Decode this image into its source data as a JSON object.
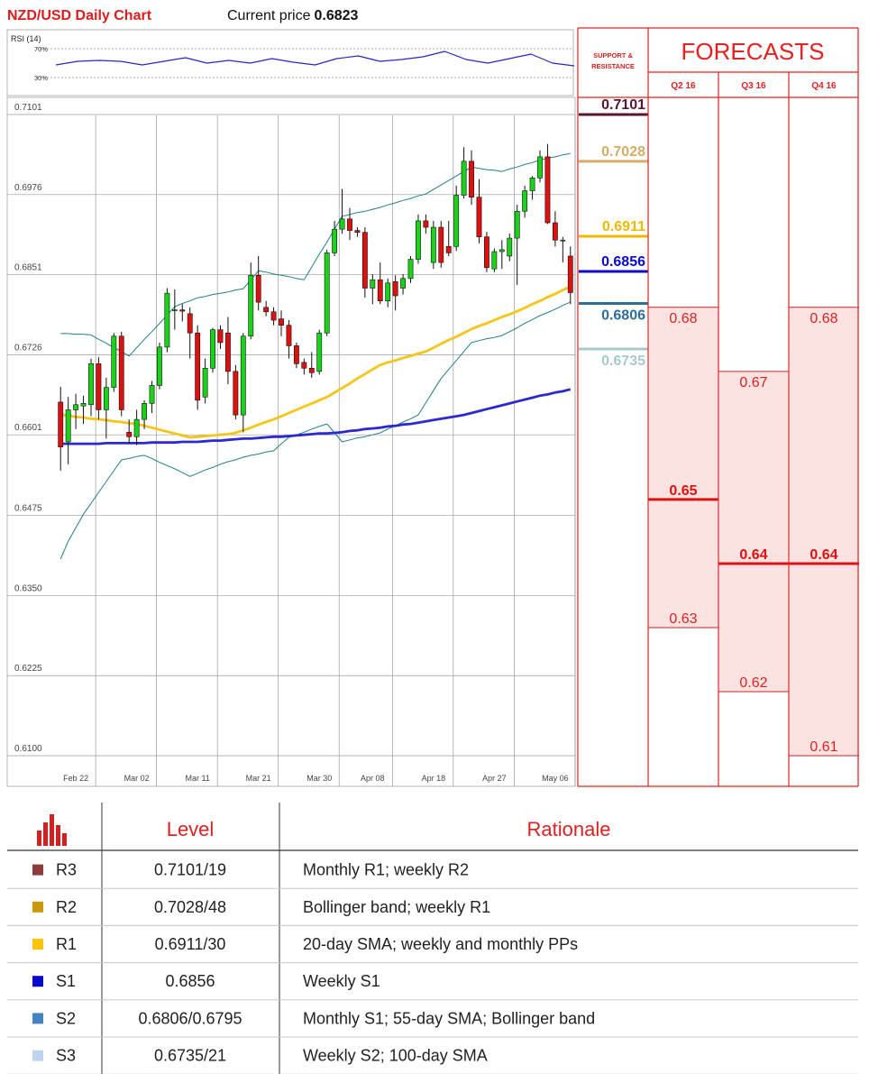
{
  "header": {
    "title": "NZD/USD Daily Chart",
    "price_label": "Current price",
    "price": 0.6823
  },
  "chart_data": [
    {
      "type": "line",
      "title": "RSI (14)",
      "color": "#2626c8",
      "values": [
        47.5,
        52.5,
        53.8,
        52.5,
        47.5,
        52.5,
        57.5,
        50,
        53.8,
        50,
        56.3,
        51.3,
        47.5,
        56.3,
        60,
        52.5,
        55,
        58.8,
        66.3,
        55,
        50,
        56.3,
        62.5,
        50,
        46.3
      ],
      "ylim": [
        10,
        85
      ],
      "yticks": [
        {
          "value": 30,
          "label": "30%"
        },
        {
          "value": 70,
          "label": "70%"
        }
      ]
    },
    {
      "type": "candlestick",
      "categories": [
        null,
        null,
        "Feb 22",
        null,
        null,
        null,
        null,
        null,
        null,
        null,
        "Mar 02",
        null,
        null,
        null,
        null,
        null,
        null,
        null,
        "Mar 11",
        null,
        null,
        null,
        null,
        null,
        null,
        null,
        "Mar 21",
        null,
        null,
        null,
        null,
        null,
        null,
        null,
        "Mar 30",
        null,
        null,
        null,
        null,
        null,
        null,
        "Apr 08",
        null,
        null,
        null,
        null,
        null,
        null,
        null,
        "Apr 18",
        null,
        null,
        null,
        null,
        null,
        null,
        null,
        "Apr 27",
        null,
        null,
        null,
        null,
        null,
        null,
        null,
        "May 06",
        null,
        null
      ],
      "open": [
        0.6652,
        0.659,
        0.664,
        0.6646,
        0.6648,
        0.6712,
        0.664,
        0.6675,
        0.6755,
        0.6605,
        0.6598,
        0.6625,
        0.665,
        0.6678,
        0.6738,
        0.6795,
        0.6796,
        0.679,
        0.676,
        0.666,
        0.6705,
        0.6765,
        0.676,
        0.67,
        0.6632,
        0.6755,
        0.685,
        0.68,
        0.6793,
        0.6782,
        0.6772,
        0.674,
        0.6714,
        0.6705,
        0.67,
        0.676,
        0.6885,
        0.6922,
        0.6938,
        0.692,
        0.6917,
        0.683,
        0.6843,
        0.681,
        0.684,
        0.683,
        0.6845,
        0.6875,
        0.6935,
        0.687,
        0.6925,
        0.6895,
        0.6895,
        0.6975,
        0.7028,
        0.6972,
        0.691,
        0.686,
        0.6887,
        0.688,
        0.6908,
        0.695,
        0.6982,
        0.7002,
        0.7035,
        0.6932,
        0.6905,
        0.688
      ],
      "high": [
        0.6676,
        0.666,
        0.6665,
        0.6662,
        0.672,
        0.6722,
        0.669,
        0.676,
        0.6762,
        0.6625,
        0.664,
        0.6655,
        0.6685,
        0.6745,
        0.683,
        0.6828,
        0.6805,
        0.68,
        0.6772,
        0.672,
        0.6768,
        0.6772,
        0.6785,
        0.671,
        0.676,
        0.687,
        0.688,
        0.681,
        0.68,
        0.6795,
        0.678,
        0.6745,
        0.672,
        0.673,
        0.6765,
        0.689,
        0.6935,
        0.6985,
        0.6955,
        0.6925,
        0.6925,
        0.6852,
        0.687,
        0.6845,
        0.685,
        0.6852,
        0.688,
        0.6945,
        0.6945,
        0.6935,
        0.6935,
        0.6935,
        0.699,
        0.705,
        0.7045,
        0.7,
        0.6918,
        0.6892,
        0.6905,
        0.6915,
        0.696,
        0.699,
        0.7005,
        0.7045,
        0.7055,
        0.695,
        0.691,
        0.6895
      ],
      "low": [
        0.6545,
        0.6555,
        0.661,
        0.6618,
        0.663,
        0.6625,
        0.6595,
        0.6668,
        0.663,
        0.6588,
        0.6585,
        0.661,
        0.6635,
        0.6672,
        0.673,
        0.6765,
        0.6778,
        0.672,
        0.664,
        0.665,
        0.6698,
        0.6735,
        0.668,
        0.6625,
        0.6605,
        0.675,
        0.6795,
        0.6786,
        0.6772,
        0.6755,
        0.672,
        0.6705,
        0.6695,
        0.669,
        0.6695,
        0.6755,
        0.688,
        0.6915,
        0.6905,
        0.691,
        0.6815,
        0.6805,
        0.6805,
        0.68,
        0.6795,
        0.682,
        0.6838,
        0.6868,
        0.6915,
        0.686,
        0.6862,
        0.688,
        0.6888,
        0.697,
        0.696,
        0.69,
        0.6855,
        0.6855,
        0.686,
        0.6872,
        0.6835,
        0.694,
        0.6968,
        0.6995,
        0.693,
        0.6895,
        0.687,
        0.6805
      ],
      "close": [
        0.6582,
        0.664,
        0.6648,
        0.665,
        0.6712,
        0.664,
        0.6675,
        0.6755,
        0.664,
        0.6598,
        0.6625,
        0.665,
        0.6678,
        0.6738,
        0.6822,
        0.6796,
        0.6794,
        0.676,
        0.6655,
        0.6705,
        0.6765,
        0.6745,
        0.67,
        0.6632,
        0.6755,
        0.685,
        0.6808,
        0.6793,
        0.678,
        0.6772,
        0.674,
        0.6712,
        0.6705,
        0.6698,
        0.676,
        0.6885,
        0.6922,
        0.6938,
        0.692,
        0.6917,
        0.683,
        0.6843,
        0.681,
        0.6838,
        0.6818,
        0.6845,
        0.6875,
        0.6935,
        0.6925,
        0.6925,
        0.687,
        0.6885,
        0.6975,
        0.7028,
        0.6972,
        0.691,
        0.6862,
        0.6887,
        0.689,
        0.6908,
        0.695,
        0.6982,
        0.7002,
        0.7035,
        0.6932,
        0.6905,
        0.6905,
        0.6823
      ],
      "up_color": "#19d219",
      "down_color": "#e01010",
      "overlays": [
        {
          "color": "#1f7f86",
          "bold": false,
          "values": [
            0.6759,
            0.6759,
            0.6758,
            0.6758,
            0.6757,
            0.675,
            0.6744,
            0.6737,
            0.6731,
            0.6724,
            0.6737,
            0.675,
            0.6762,
            0.6775,
            0.6788,
            0.6801,
            0.6806,
            0.681,
            0.6815,
            0.6817,
            0.682,
            0.6822,
            0.6824,
            0.6827,
            0.6829,
            0.6843,
            0.6857,
            0.6855,
            0.6852,
            0.685,
            0.6848,
            0.6845,
            0.6843,
            0.6863,
            0.6883,
            0.6902,
            0.6922,
            0.6942,
            0.6945,
            0.6948,
            0.695,
            0.6953,
            0.6956,
            0.696,
            0.6963,
            0.6967,
            0.697,
            0.6974,
            0.6977,
            0.6984,
            0.6991,
            0.6998,
            0.7005,
            0.7012,
            0.7019,
            0.7017,
            0.7015,
            0.7014,
            0.7012,
            0.7016,
            0.7019,
            0.7023,
            0.7026,
            0.703,
            0.7033,
            0.7035,
            0.7038,
            0.704
          ]
        },
        {
          "color": "#1f7f86",
          "bold": false,
          "values": [
            0.6407,
            0.6435,
            0.6456,
            0.6477,
            0.6494,
            0.6511,
            0.6528,
            0.6545,
            0.6562,
            0.6564,
            0.6567,
            0.6569,
            0.6564,
            0.6558,
            0.6553,
            0.6548,
            0.6542,
            0.6536,
            0.6541,
            0.6546,
            0.655,
            0.6555,
            0.6559,
            0.6562,
            0.6566,
            0.6569,
            0.6571,
            0.6574,
            0.6576,
            0.6587,
            0.6597,
            0.6601,
            0.6605,
            0.661,
            0.6614,
            0.6618,
            0.6604,
            0.659,
            0.6593,
            0.6596,
            0.6598,
            0.6601,
            0.6604,
            0.661,
            0.6615,
            0.6621,
            0.6626,
            0.6632,
            0.6651,
            0.667,
            0.6689,
            0.6703,
            0.6717,
            0.6731,
            0.6745,
            0.6748,
            0.6751,
            0.6753,
            0.6756,
            0.6762,
            0.6768,
            0.6775,
            0.6781,
            0.6787,
            0.6792,
            0.6797,
            0.6803,
            0.6808
          ]
        },
        {
          "color": "#f5c518",
          "bold": true,
          "values": [
            0.6632,
            0.6631,
            0.6629,
            0.6628,
            0.6626,
            0.6625,
            0.6624,
            0.6622,
            0.6621,
            0.6619,
            0.6618,
            0.6615,
            0.6612,
            0.6609,
            0.6606,
            0.6603,
            0.66,
            0.6597,
            0.6598,
            0.6599,
            0.66,
            0.6601,
            0.6602,
            0.6604,
            0.6608,
            0.6612,
            0.6617,
            0.6621,
            0.6625,
            0.663,
            0.6635,
            0.664,
            0.6645,
            0.665,
            0.6655,
            0.666,
            0.6667,
            0.6674,
            0.6681,
            0.6689,
            0.6696,
            0.6703,
            0.671,
            0.6714,
            0.6717,
            0.6721,
            0.6724,
            0.6728,
            0.6731,
            0.6737,
            0.6743,
            0.6749,
            0.6754,
            0.676,
            0.6766,
            0.6771,
            0.6775,
            0.678,
            0.6785,
            0.6789,
            0.6794,
            0.6799,
            0.6805,
            0.681,
            0.6816,
            0.6821,
            0.6827,
            0.6832
          ]
        },
        {
          "color": "#2a2ad0",
          "bold": true,
          "values": [
            0.6587,
            0.6587,
            0.6587,
            0.6587,
            0.6587,
            0.6587,
            0.6588,
            0.6588,
            0.6588,
            0.6588,
            0.6588,
            0.6588,
            0.6589,
            0.6589,
            0.6589,
            0.6589,
            0.659,
            0.659,
            0.659,
            0.6591,
            0.6592,
            0.6592,
            0.6593,
            0.6594,
            0.6595,
            0.6595,
            0.6596,
            0.6597,
            0.6598,
            0.6598,
            0.6599,
            0.66,
            0.6601,
            0.6602,
            0.6603,
            0.6603,
            0.6604,
            0.6605,
            0.6607,
            0.6608,
            0.661,
            0.6611,
            0.6612,
            0.6614,
            0.6615,
            0.6617,
            0.6618,
            0.662,
            0.6622,
            0.6624,
            0.6626,
            0.6628,
            0.663,
            0.6632,
            0.6635,
            0.6638,
            0.6641,
            0.6644,
            0.6647,
            0.665,
            0.6653,
            0.6656,
            0.6659,
            0.6662,
            0.6664,
            0.6667,
            0.6669,
            0.6672
          ]
        }
      ],
      "ylim": [
        0.6055,
        0.7101
      ],
      "yticks": [
        {
          "value": 0.61,
          "label": "0.6100"
        },
        0.6225,
        {
          "value": 0.635,
          "label": "0.6350"
        },
        0.6475,
        0.6601,
        0.6726,
        0.6851,
        0.6976,
        0.7101
      ],
      "grid": true
    }
  ],
  "levels": {
    "header": [
      "SUPPORT &",
      "RESISTANCE"
    ],
    "items": [
      {
        "value": 0.7101,
        "color": "#5a1530"
      },
      {
        "value": 0.7028,
        "color": "#d4ac66"
      },
      {
        "value": 0.6911,
        "color": "#f2b800"
      },
      {
        "value": 0.6856,
        "color": "#0a0acc"
      },
      {
        "value": 0.6806,
        "color": "#2e6e9c"
      },
      {
        "value": 0.6735,
        "color": "#a7c9cf"
      }
    ]
  },
  "forecasts": {
    "title": "FORECASTS",
    "columns": [
      {
        "name": "Q2 16",
        "high": 0.68,
        "mid": 0.65,
        "low": 0.63
      },
      {
        "name": "Q3 16",
        "high": 0.67,
        "mid": 0.64,
        "low": 0.62
      },
      {
        "name": "Q4 16",
        "high": 0.68,
        "mid": 0.64,
        "low": 0.61
      }
    ]
  },
  "table": {
    "headers": [
      "Level",
      "Rationale"
    ],
    "rows": [
      {
        "color": "#8e3b3b",
        "label": "R3",
        "level": "0.7101/19",
        "rationale": "Monthly R1; weekly R2"
      },
      {
        "color": "#c9980c",
        "label": "R2",
        "level": "0.7028/48",
        "rationale": "Bollinger band; weekly R1"
      },
      {
        "color": "#ffc400",
        "label": "R1",
        "level": "0.6911/30",
        "rationale": "20-day SMA; weekly and monthly PPs"
      },
      {
        "color": "#0a0acc",
        "label": "S1",
        "level": "0.6856",
        "rationale": "Weekly S1"
      },
      {
        "color": "#4682c0",
        "label": "S2",
        "level": "0.6806/0.6795",
        "rationale": "Monthly S1; 55-day SMA; Bollinger band"
      },
      {
        "color": "#bcd4ec",
        "label": "S3",
        "level": "0.6735/21",
        "rationale": "Weekly S2; 100-day SMA"
      }
    ]
  }
}
